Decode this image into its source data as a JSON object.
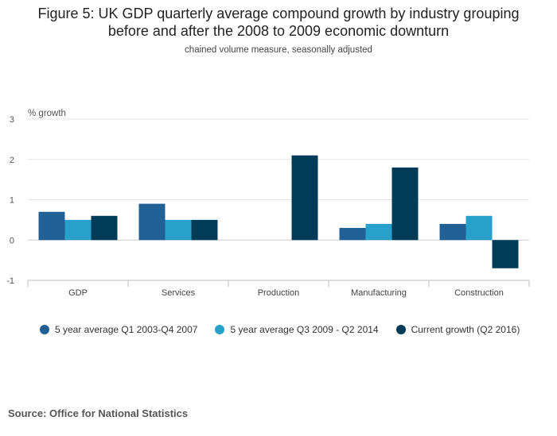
{
  "title_line1": "Figure 5: UK GDP quarterly average compound growth by industry grouping",
  "title_line2": "before and after the 2008 to 2009 economic downturn",
  "subtitle": "chained volume measure, seasonally adjusted",
  "source": "Source: Office for National Statistics",
  "chart_data": {
    "type": "bar",
    "title": "Figure 5: UK GDP quarterly average compound growth by industry grouping before and after the 2008 to 2009 economic downturn",
    "subtitle": "chained volume measure, seasonally adjusted",
    "xlabel": "",
    "ylabel": "% growth",
    "ylim": [
      -1,
      3
    ],
    "yticks": [
      3,
      2,
      1,
      0,
      -1
    ],
    "grid": true,
    "legend_position": "bottom",
    "categories": [
      "GDP",
      "Services",
      "Production",
      "Manufacturing",
      "Construction"
    ],
    "series": [
      {
        "name": "5 year average Q1 2003-Q4 2007",
        "color": "#206095",
        "values": [
          0.7,
          0.9,
          0.0,
          0.3,
          0.4
        ]
      },
      {
        "name": "5 year average Q3 2009 - Q2 2014",
        "color": "#27a0cc",
        "values": [
          0.5,
          0.5,
          0.0,
          0.4,
          0.6
        ]
      },
      {
        "name": "Current growth (Q2 2016)",
        "color": "#003c57",
        "values": [
          0.6,
          0.5,
          2.1,
          1.8,
          -0.7
        ]
      }
    ]
  }
}
